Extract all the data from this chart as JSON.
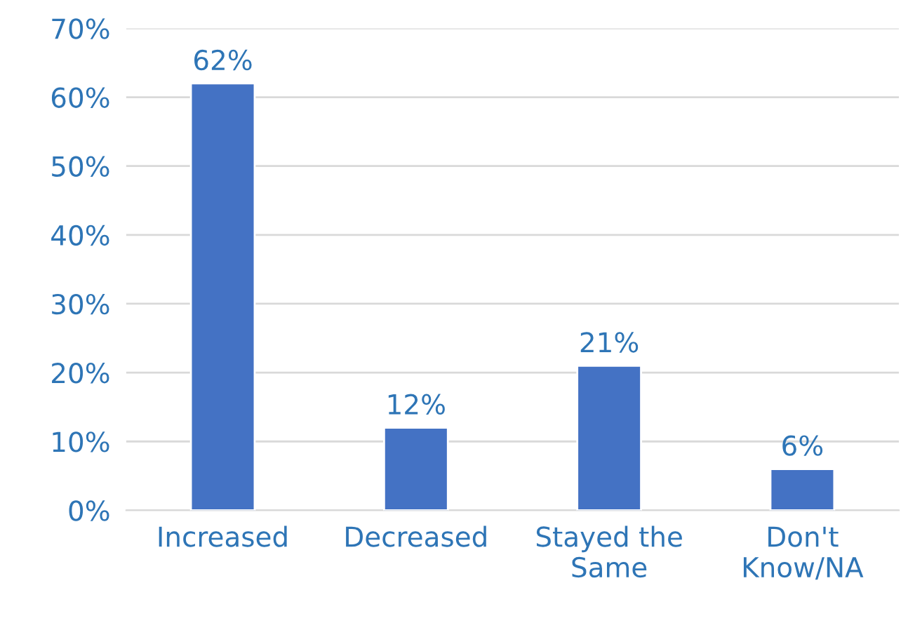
{
  "chart_data": {
    "type": "bar",
    "categories": [
      "Increased",
      "Decreased",
      "Stayed the\nSame",
      "Don't\nKnow/NA"
    ],
    "values": [
      62,
      12,
      21,
      6
    ],
    "color": "#4472c4",
    "value_labels": [
      "62%",
      "12%",
      "21%",
      "6%"
    ],
    "ylim": [
      0,
      70
    ],
    "yticks": [
      {
        "value": 0,
        "label": "0%"
      },
      {
        "value": 10,
        "label": "10%"
      },
      {
        "value": 20,
        "label": "20%"
      },
      {
        "value": 30,
        "label": "30%"
      },
      {
        "value": 40,
        "label": "40%"
      },
      {
        "value": 50,
        "label": "50%"
      },
      {
        "value": 60,
        "label": "60%"
      },
      {
        "value": 70,
        "label": "70%"
      }
    ],
    "grid": "y"
  }
}
